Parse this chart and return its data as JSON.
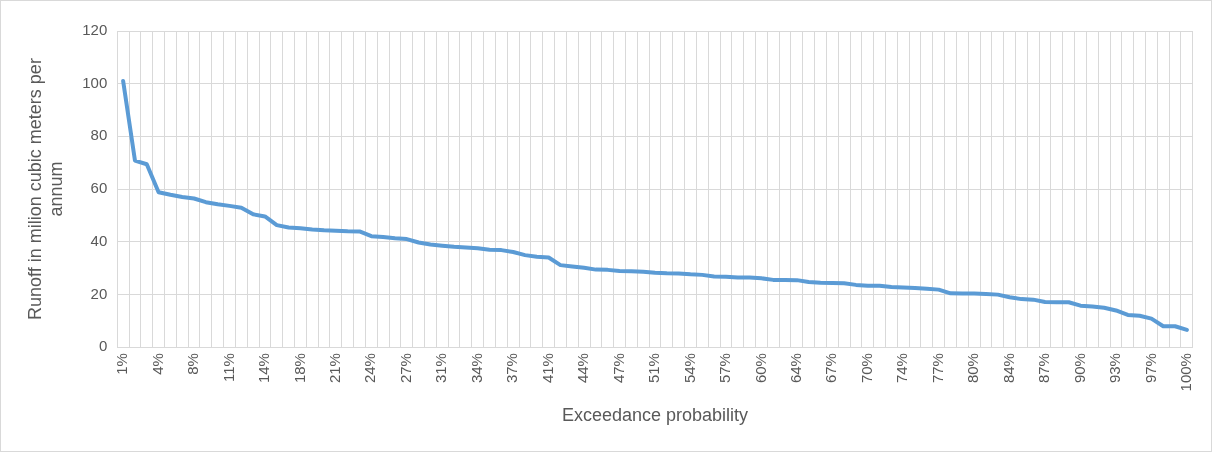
{
  "chart_data": {
    "type": "line",
    "xlabel": "Exceedance probability",
    "ylabel": "Runoff in milion cubic meters per annum",
    "categories": [
      "1%",
      null,
      null,
      "4%",
      null,
      null,
      "8%",
      null,
      null,
      "11%",
      null,
      null,
      "14%",
      null,
      null,
      "18%",
      null,
      null,
      "21%",
      null,
      null,
      "24%",
      null,
      null,
      "27%",
      null,
      null,
      "31%",
      null,
      null,
      "34%",
      null,
      null,
      "37%",
      null,
      null,
      "41%",
      null,
      null,
      "44%",
      null,
      null,
      "47%",
      null,
      null,
      "51%",
      null,
      null,
      "54%",
      null,
      null,
      "57%",
      null,
      null,
      "60%",
      null,
      null,
      "64%",
      null,
      null,
      "67%",
      null,
      null,
      "70%",
      null,
      null,
      "74%",
      null,
      null,
      "77%",
      null,
      null,
      "80%",
      null,
      null,
      "84%",
      null,
      null,
      "87%",
      null,
      null,
      "90%",
      null,
      null,
      "93%",
      null,
      null,
      "97%",
      null,
      null,
      "100%"
    ],
    "series": [
      {
        "color": "#5b9bd5",
        "values": [
          101,
          70.8,
          69.4,
          58.8,
          57.8,
          57,
          56.4,
          55,
          54.2,
          53.6,
          52.9,
          50.4,
          49.6,
          46.3,
          45.4,
          45.1,
          44.6,
          44.3,
          44.2,
          44,
          43.9,
          42.1,
          41.8,
          41.3,
          41,
          39.7,
          38.9,
          38.5,
          38.1,
          37.8,
          37.5,
          36.9,
          36.8,
          36.1,
          34.9,
          34.3,
          34,
          31.1,
          30.6,
          30.1,
          29.4,
          29.3,
          28.9,
          28.8,
          28.6,
          28.2,
          28,
          27.9,
          27.6,
          27.4,
          26.8,
          26.7,
          26.4,
          26.4,
          26.1,
          25.5,
          25.5,
          25.4,
          24.7,
          24.4,
          24.3,
          24.2,
          23.6,
          23.3,
          23.3,
          22.8,
          22.6,
          22.4,
          22.1,
          21.8,
          20.4,
          20.3,
          20.3,
          20.1,
          19.9,
          18.9,
          18.2,
          18,
          17.1,
          17,
          17,
          15.7,
          15.4,
          14.9,
          13.9,
          12.2,
          11.9,
          10.8,
          7.9,
          7.9,
          6.5
        ]
      }
    ],
    "ylim": [
      0,
      120
    ],
    "yticks": [
      0,
      20,
      40,
      60,
      80,
      100,
      120
    ],
    "grid": true,
    "legend": false,
    "marker": "none",
    "line_style": "solid"
  }
}
